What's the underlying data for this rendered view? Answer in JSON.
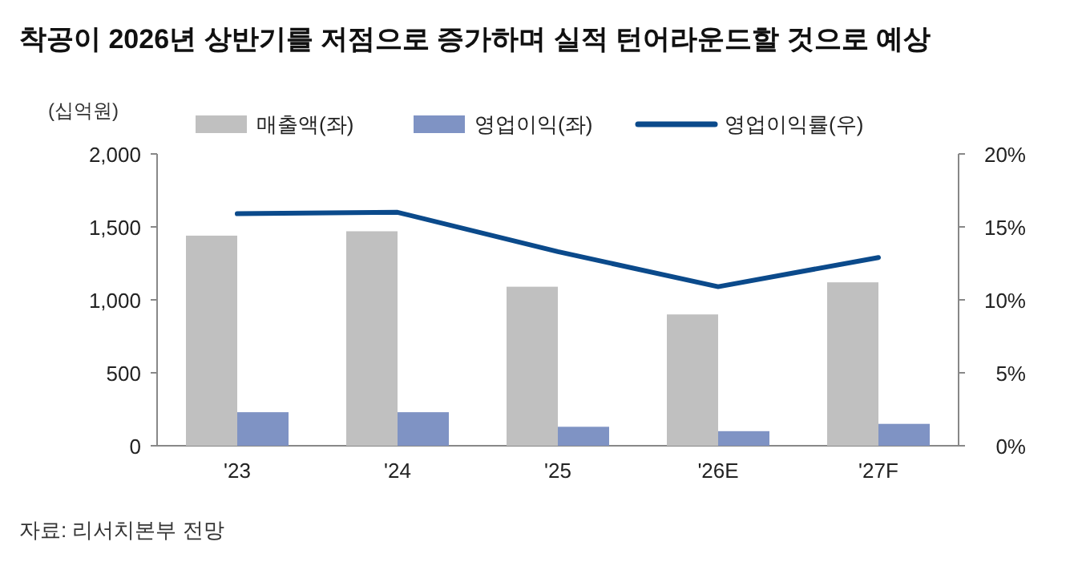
{
  "chart_data": {
    "type": "bar",
    "title": "착공이 2026년 상반기를 저점으로 증가하며 실적 턴어라운드할 것으로 예상",
    "ylabel": "(십억원)",
    "categories": [
      "'23",
      "'24",
      "'25",
      "'26E",
      "'27F"
    ],
    "series": [
      {
        "name": "매출액(좌)",
        "color": "#c0c0c0",
        "values": [
          1440,
          1470,
          1090,
          900,
          1120
        ]
      },
      {
        "name": "영업이익(좌)",
        "color": "#7f93c4",
        "values": [
          230,
          230,
          130,
          100,
          150
        ]
      },
      {
        "name": "영업이익률(우)",
        "type": "line",
        "axis": "y2",
        "color": "#0b4a8b",
        "values": [
          15.9,
          16.0,
          13.3,
          10.9,
          12.9
        ]
      }
    ],
    "ylim": [
      0,
      2000
    ],
    "yticks": [
      0,
      500,
      {
        "value": 1000,
        "label": "1,000"
      },
      {
        "value": 1500,
        "label": "1,500"
      },
      {
        "value": 2000,
        "label": "2,000"
      }
    ],
    "y2lim": [
      0,
      20
    ],
    "y2ticks": [
      {
        "value": 0,
        "label": "0%"
      },
      {
        "value": 5,
        "label": "5%"
      },
      {
        "value": 10,
        "label": "10%"
      },
      {
        "value": 15,
        "label": "15%"
      },
      {
        "value": 20,
        "label": "20%"
      }
    ],
    "legend": "top",
    "grid": false,
    "annotations": [
      "자료: 리서치본부 전망"
    ]
  }
}
